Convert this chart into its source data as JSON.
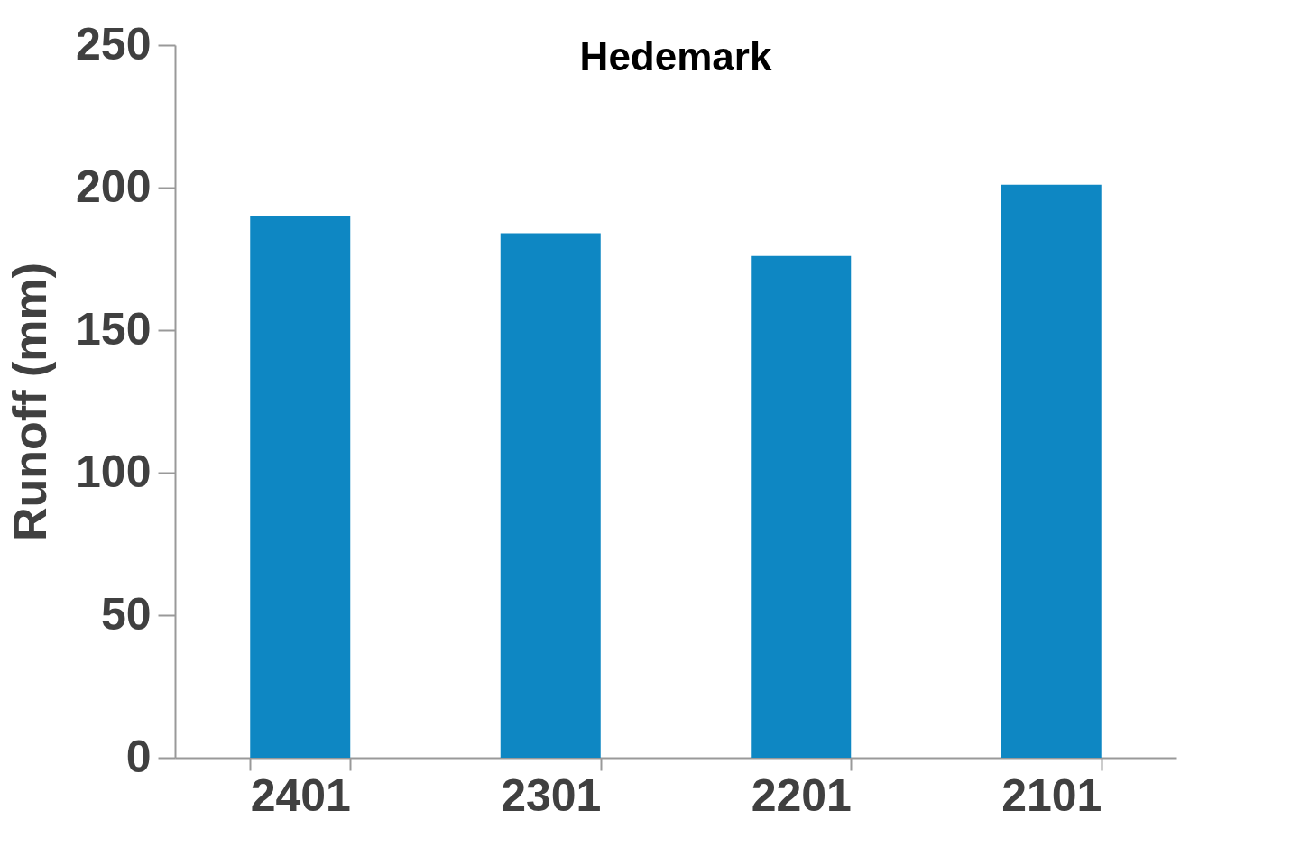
{
  "chart_data": {
    "type": "bar",
    "title": "Hedemark",
    "ylabel": "Runoff (mm)",
    "categories": [
      "2401",
      "2301",
      "2201",
      "2101"
    ],
    "values": [
      190,
      184,
      176,
      201
    ],
    "color": "#0e87c3",
    "ylim": [
      0,
      250
    ],
    "yticks": [
      0,
      50,
      100,
      150,
      200,
      250
    ],
    "grid": false
  }
}
